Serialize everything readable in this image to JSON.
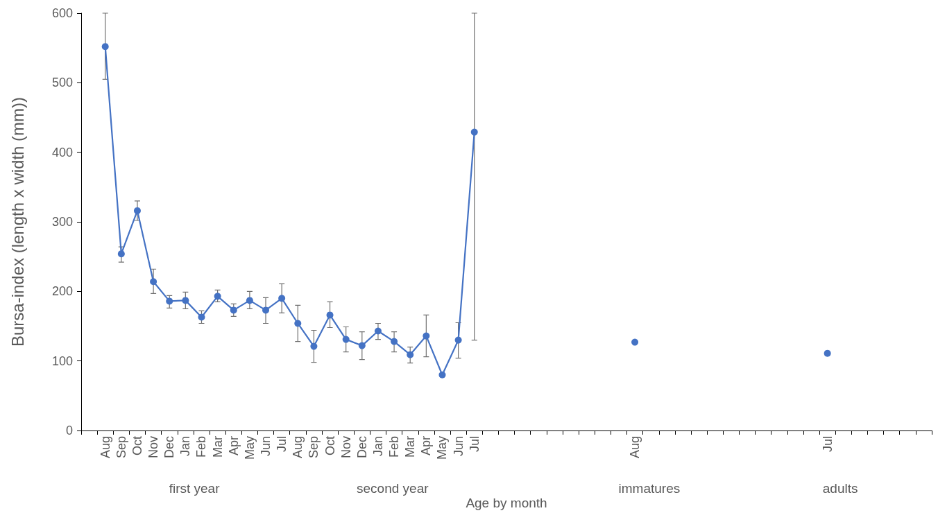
{
  "chart_data": {
    "type": "line",
    "ylabel": "Bursa-index (length x width (mm))",
    "xlabel": "Age by month",
    "categories": [
      null,
      "Aug",
      "Sep",
      "Oct",
      "Nov",
      "Dec",
      "Jan",
      "Feb",
      "Mar",
      "Apr",
      "May",
      "Jun",
      "Jul",
      "Aug",
      "Sep",
      "Oct",
      "Nov",
      "Dec",
      "Jan",
      "Feb",
      "Mar",
      "Apr",
      "May",
      "Jun",
      "Jul",
      null,
      null,
      null,
      null,
      null,
      null,
      null,
      null,
      null,
      "Aug",
      null,
      null,
      null,
      null,
      null,
      null,
      null,
      null,
      null,
      null,
      null,
      "Jul",
      null,
      null,
      null,
      null,
      null,
      null
    ],
    "series": [
      {
        "color": "#4472c4",
        "values": [
          null,
          552,
          254,
          316,
          214,
          186,
          187,
          163,
          193,
          173,
          187,
          173,
          190,
          154,
          121,
          166,
          131,
          122,
          143,
          128,
          109,
          136,
          80,
          130,
          429,
          null,
          null,
          null,
          null,
          null,
          null,
          null,
          null,
          null,
          127,
          null,
          null,
          null,
          null,
          null,
          null,
          null,
          null,
          null,
          null,
          null,
          111,
          null,
          null,
          null,
          null,
          null,
          null
        ],
        "errors": [
          null,
          [
            505,
            600
          ],
          [
            242,
            264
          ],
          [
            302,
            330
          ],
          [
            197,
            232
          ],
          [
            176,
            194
          ],
          [
            175,
            199
          ],
          [
            154,
            172
          ],
          [
            185,
            202
          ],
          [
            164,
            182
          ],
          [
            175,
            200
          ],
          [
            154,
            191
          ],
          [
            169,
            211
          ],
          [
            128,
            180
          ],
          [
            98,
            144
          ],
          [
            148,
            185
          ],
          [
            113,
            149
          ],
          [
            102,
            142
          ],
          [
            131,
            154
          ],
          [
            113,
            142
          ],
          [
            97,
            120
          ],
          [
            106,
            166
          ],
          null,
          [
            104,
            155
          ],
          [
            130,
            600
          ],
          null,
          null,
          null,
          null,
          null,
          null,
          null,
          null,
          null,
          null,
          null,
          null,
          null,
          null,
          null,
          null,
          null,
          null,
          null,
          null,
          null,
          null,
          null,
          null,
          null,
          null,
          null,
          null
        ]
      }
    ],
    "ylim": [
      0,
      600
    ],
    "yticks": [
      0,
      100,
      200,
      300,
      400,
      500,
      600
    ],
    "marker": "circle",
    "line_style": "solid",
    "annotations": [
      "first year",
      "second year",
      "immatures",
      "adults"
    ]
  }
}
